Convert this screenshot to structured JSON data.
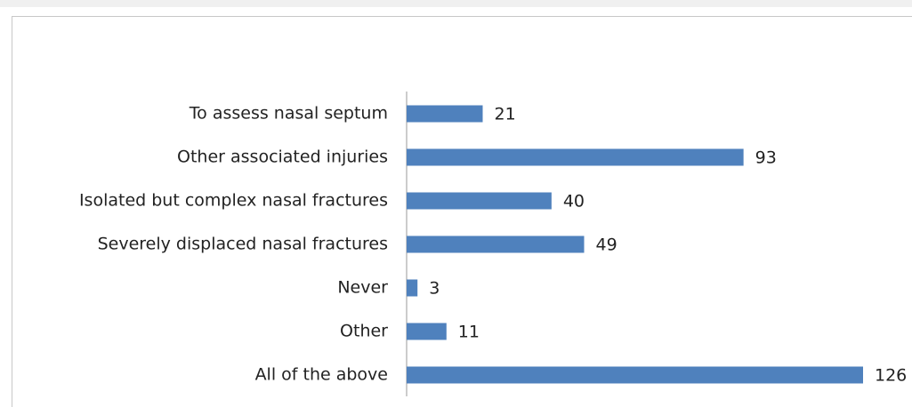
{
  "chart_data": {
    "type": "bar",
    "orientation": "horizontal",
    "categories": [
      "To assess nasal septum",
      "Other associated injuries",
      "Isolated but complex nasal fractures",
      "Severely displaced nasal fractures",
      "Never",
      "Other",
      "All of the above"
    ],
    "values": [
      21,
      93,
      40,
      49,
      3,
      11,
      126
    ],
    "color": "#4f81bd"
  }
}
